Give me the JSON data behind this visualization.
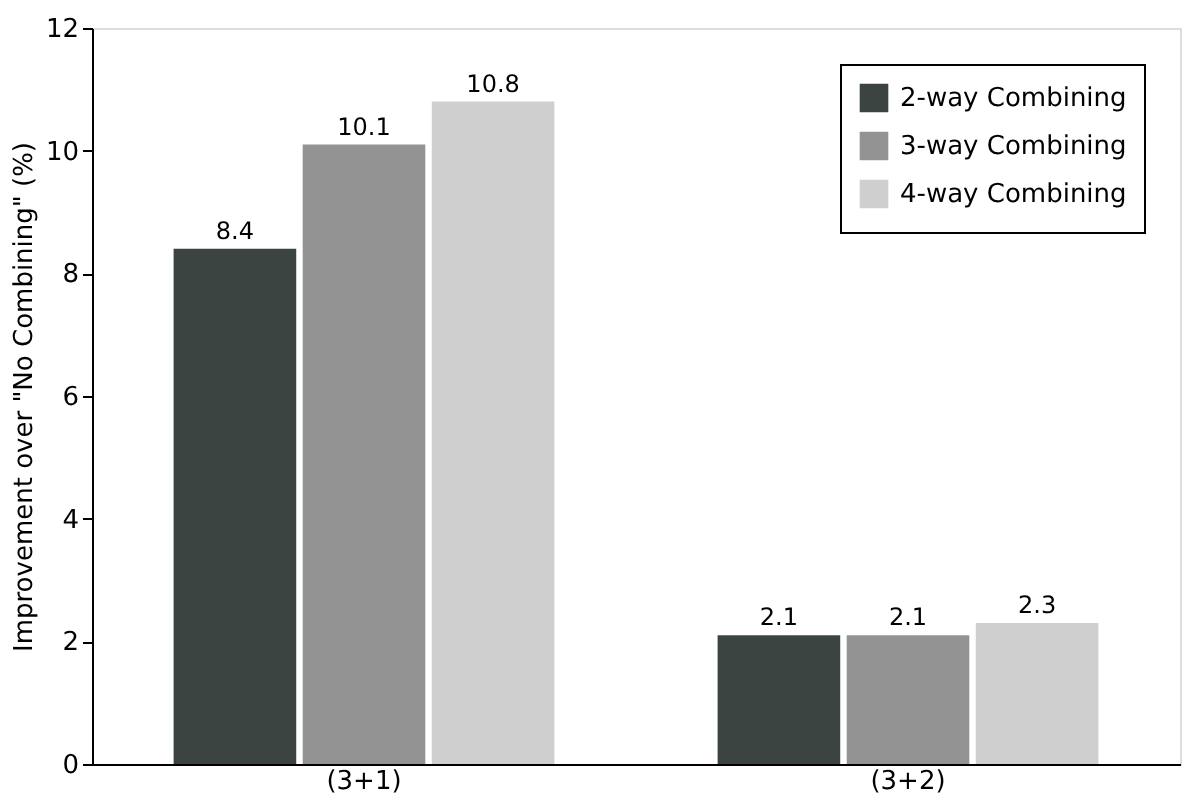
{
  "chart_data": {
    "type": "bar",
    "ylabel": "Improvement over \"No Combining\" (%)",
    "categories": [
      "(3+1)",
      "(3+2)"
    ],
    "series": [
      {
        "name": "2-way Combining",
        "color": "#3c4442",
        "values": [
          8.4,
          2.1
        ]
      },
      {
        "name": "3-way Combining",
        "color": "#939393",
        "values": [
          10.1,
          2.1
        ]
      },
      {
        "name": "4-way Combining",
        "color": "#cfcfcf",
        "values": [
          10.8,
          2.3
        ]
      }
    ],
    "ylim": [
      0,
      12
    ],
    "yticks": [
      0,
      2,
      4,
      6,
      8,
      10,
      12
    ],
    "grid": false,
    "legend": "top right",
    "data_labels": true
  }
}
